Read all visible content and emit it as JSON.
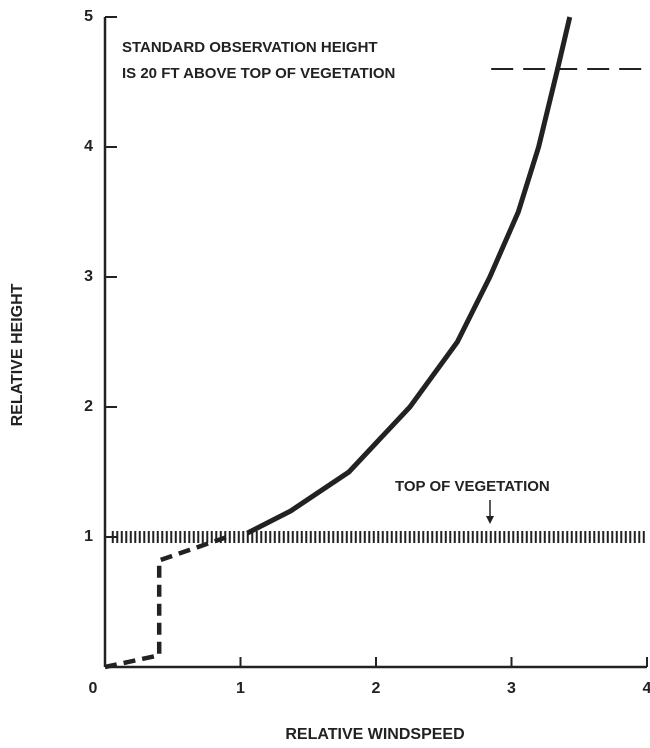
{
  "chart_data": {
    "type": "line",
    "xlabel": "RELATIVE WINDSPEED",
    "ylabel": "RELATIVE HEIGHT",
    "xlim": [
      0,
      4
    ],
    "ylim": [
      0,
      5
    ],
    "xticks": [
      0,
      1,
      2,
      3,
      4
    ],
    "yticks": [
      1,
      2,
      3,
      4,
      5
    ],
    "series": [
      {
        "color": "#222222",
        "style": "solid",
        "x": [
          1.05,
          1.37,
          1.8,
          2.25,
          2.6,
          2.84,
          3.05,
          3.2,
          3.34,
          3.43
        ],
        "values": [
          1.03,
          1.2,
          1.5,
          2.0,
          2.5,
          3.0,
          3.5,
          4.0,
          4.6,
          5.0
        ]
      },
      {
        "color": "#222222",
        "style": "dashed",
        "x": [
          0,
          0.4,
          0.4,
          0.9
        ],
        "values": [
          0,
          0.09,
          0.82,
          1.0
        ]
      },
      {
        "color": "#222222",
        "style": "hatched",
        "x": [
          0.05,
          4
        ],
        "values": [
          1,
          1
        ]
      },
      {
        "color": "#222222",
        "style": "longdash",
        "x": [
          2.85,
          4
        ],
        "values": [
          4.6,
          4.6
        ]
      }
    ],
    "annotations": [
      "STANDARD OBSERVATION HEIGHT",
      "IS 20 FT ABOVE TOP OF VEGETATION",
      "TOP OF VEGETATION"
    ]
  }
}
